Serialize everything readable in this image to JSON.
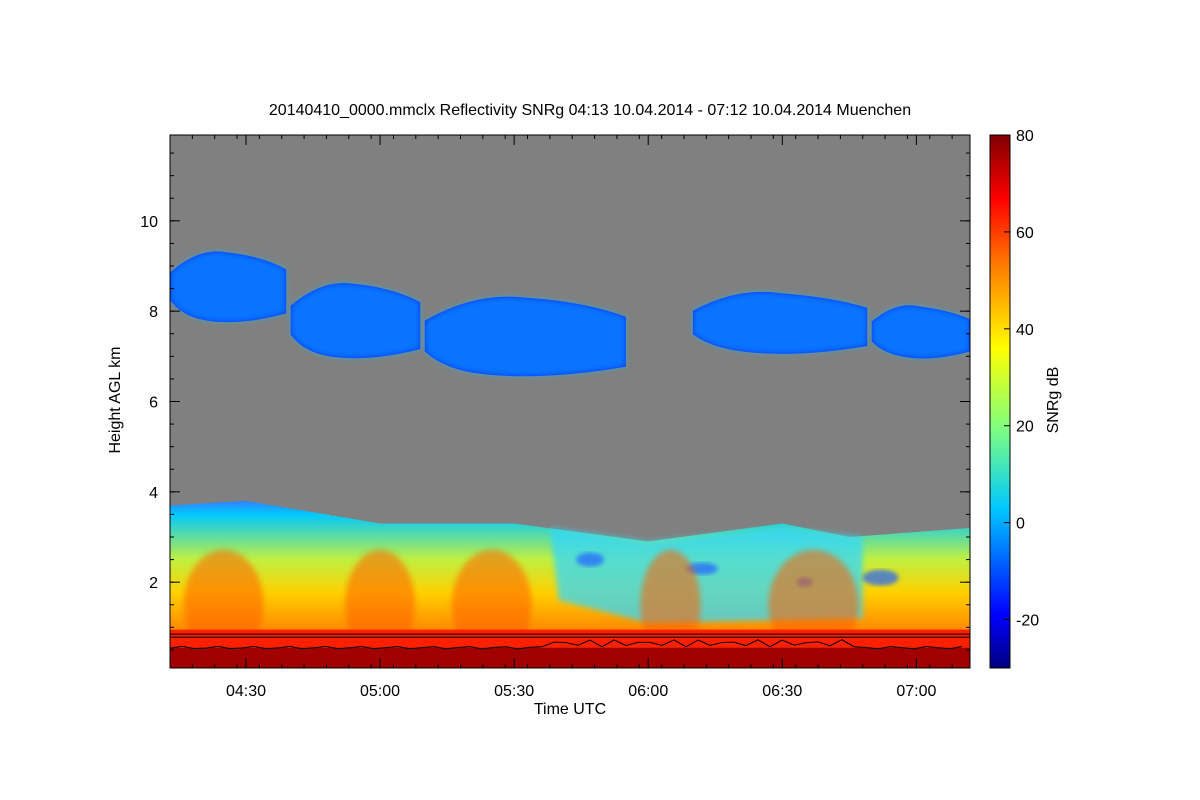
{
  "chart_data": {
    "type": "heatmap",
    "title": "20140410_0000.mmclx Reflectivity SNRg   04:13 10.04.2014 - 07:12 10.04.2014 Muenchen",
    "xlabel": "Time UTC",
    "ylabel": "Height AGL km",
    "colorbar_label": "SNRg dB",
    "x_range": [
      "04:13",
      "07:12"
    ],
    "x_ticks": [
      "04:30",
      "05:00",
      "05:30",
      "06:00",
      "06:30",
      "07:00"
    ],
    "y_range": [
      0.1,
      11.9
    ],
    "y_ticks": [
      2,
      4,
      6,
      8,
      10
    ],
    "color_range": [
      -30,
      80
    ],
    "colorbar_ticks": [
      -20,
      0,
      20,
      40,
      60,
      80
    ],
    "colormap": [
      "#00007f",
      "#0000ff",
      "#00c8ff",
      "#7fff7f",
      "#ffff00",
      "#ff8000",
      "#ff0000",
      "#7f0000"
    ],
    "missing_color": "#808080",
    "features": {
      "lower_layer_top_km": [
        {
          "time": "04:13",
          "height": 3.7
        },
        {
          "time": "04:30",
          "height": 3.8
        },
        {
          "time": "05:00",
          "height": 3.3
        },
        {
          "time": "05:30",
          "height": 3.3
        },
        {
          "time": "05:45",
          "height": 3.1
        },
        {
          "time": "06:00",
          "height": 2.9
        },
        {
          "time": "06:30",
          "height": 3.3
        },
        {
          "time": "06:45",
          "height": 3.0
        },
        {
          "time": "07:12",
          "height": 3.2
        }
      ],
      "upper_cloud_layers": [
        {
          "start": "04:13",
          "end": "04:39",
          "base_km": 7.8,
          "top_km": 9.3,
          "snr_db": -12
        },
        {
          "start": "04:40",
          "end": "05:09",
          "base_km": 7.0,
          "top_km": 8.6,
          "snr_db": -15
        },
        {
          "start": "05:10",
          "end": "05:55",
          "base_km": 6.6,
          "top_km": 8.3,
          "snr_db": -8
        },
        {
          "start": "06:10",
          "end": "06:49",
          "base_km": 7.1,
          "top_km": 8.4,
          "snr_db": -12
        },
        {
          "start": "06:50",
          "end": "07:12",
          "base_km": 7.0,
          "top_km": 8.1,
          "snr_db": -8
        }
      ],
      "reference_line_km": 0.85
    }
  }
}
